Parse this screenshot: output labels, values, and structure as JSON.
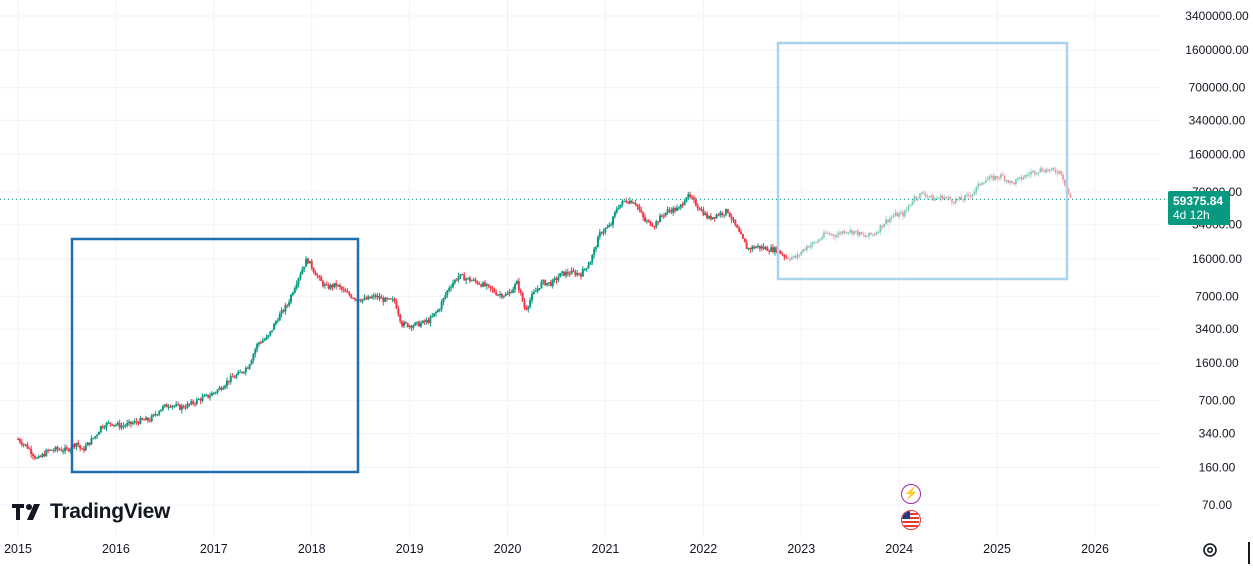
{
  "chart_data": {
    "type": "candlestick",
    "scale": "log",
    "y_ticks": [
      "3400000.00",
      "1600000.00",
      "700000.00",
      "340000.00",
      "160000.00",
      "70000.00",
      "34000.00",
      "16000.00",
      "7000.00",
      "3400.00",
      "1600.00",
      "700.00",
      "340.00",
      "160.00",
      "70.00"
    ],
    "x_ticks": [
      "2015",
      "2016",
      "2017",
      "2018",
      "2019",
      "2020",
      "2021",
      "2022",
      "2023",
      "2024",
      "2025",
      "2026"
    ],
    "x_range": [
      2015.0,
      2026.5
    ],
    "y_range": [
      50,
      4500000
    ],
    "grid": true,
    "current_price": "59375.84",
    "countdown": "4d 12h",
    "series": [
      {
        "color_up": "#089981",
        "color_down": "#f23645",
        "points": [
          [
            2015.0,
            300
          ],
          [
            2015.1,
            250
          ],
          [
            2015.2,
            190
          ],
          [
            2015.3,
            230
          ],
          [
            2015.4,
            240
          ],
          [
            2015.5,
            235
          ],
          [
            2015.6,
            280
          ],
          [
            2015.65,
            230
          ],
          [
            2015.7,
            260
          ],
          [
            2015.8,
            330
          ],
          [
            2015.85,
            400
          ],
          [
            2015.95,
            430
          ],
          [
            2016.05,
            400
          ],
          [
            2016.15,
            420
          ],
          [
            2016.25,
            450
          ],
          [
            2016.35,
            460
          ],
          [
            2016.45,
            580
          ],
          [
            2016.55,
            650
          ],
          [
            2016.65,
            600
          ],
          [
            2016.75,
            640
          ],
          [
            2016.85,
            720
          ],
          [
            2016.95,
            780
          ],
          [
            2017.05,
            900
          ],
          [
            2017.15,
            1100
          ],
          [
            2017.25,
            1250
          ],
          [
            2017.35,
            1500
          ],
          [
            2017.45,
            2500
          ],
          [
            2017.55,
            2800
          ],
          [
            2017.65,
            4300
          ],
          [
            2017.75,
            5800
          ],
          [
            2017.85,
            10000
          ],
          [
            2017.95,
            16000
          ],
          [
            2018.0,
            13500
          ],
          [
            2018.08,
            10000
          ],
          [
            2018.15,
            8500
          ],
          [
            2018.25,
            9000
          ],
          [
            2018.35,
            7500
          ],
          [
            2018.45,
            6700
          ],
          [
            2018.55,
            6500
          ],
          [
            2018.65,
            7000
          ],
          [
            2018.75,
            6400
          ],
          [
            2018.85,
            6300
          ],
          [
            2018.92,
            3800
          ],
          [
            2019.0,
            3700
          ],
          [
            2019.1,
            3800
          ],
          [
            2019.2,
            4100
          ],
          [
            2019.3,
            5300
          ],
          [
            2019.4,
            8500
          ],
          [
            2019.5,
            11000
          ],
          [
            2019.6,
            10200
          ],
          [
            2019.7,
            9500
          ],
          [
            2019.8,
            8500
          ],
          [
            2019.9,
            7400
          ],
          [
            2020.0,
            7200
          ],
          [
            2020.1,
            9500
          ],
          [
            2020.18,
            5200
          ],
          [
            2020.25,
            7000
          ],
          [
            2020.35,
            9500
          ],
          [
            2020.45,
            9300
          ],
          [
            2020.55,
            11500
          ],
          [
            2020.65,
            11800
          ],
          [
            2020.75,
            11500
          ],
          [
            2020.85,
            15500
          ],
          [
            2020.95,
            29000
          ],
          [
            2021.05,
            33000
          ],
          [
            2021.12,
            50000
          ],
          [
            2021.2,
            58000
          ],
          [
            2021.3,
            57000
          ],
          [
            2021.4,
            37000
          ],
          [
            2021.5,
            34000
          ],
          [
            2021.58,
            42000
          ],
          [
            2021.65,
            47000
          ],
          [
            2021.75,
            48000
          ],
          [
            2021.83,
            65000
          ],
          [
            2021.9,
            57000
          ],
          [
            2021.98,
            47000
          ],
          [
            2022.05,
            39000
          ],
          [
            2022.15,
            43000
          ],
          [
            2022.25,
            46000
          ],
          [
            2022.35,
            30000
          ],
          [
            2022.45,
            20000
          ],
          [
            2022.55,
            21000
          ],
          [
            2022.65,
            20000
          ],
          [
            2022.75,
            19500
          ],
          [
            2022.85,
            16500
          ],
          [
            2022.95,
            16500
          ],
          [
            2023.05,
            21000
          ],
          [
            2023.15,
            23000
          ],
          [
            2023.25,
            28000
          ],
          [
            2023.35,
            27000
          ],
          [
            2023.45,
            30000
          ],
          [
            2023.55,
            29000
          ],
          [
            2023.65,
            26000
          ],
          [
            2023.75,
            28000
          ],
          [
            2023.85,
            36000
          ],
          [
            2023.95,
            42000
          ],
          [
            2024.05,
            43000
          ],
          [
            2024.15,
            62000
          ],
          [
            2024.25,
            68000
          ],
          [
            2024.35,
            60000
          ],
          [
            2024.45,
            63000
          ],
          [
            2024.55,
            58000
          ],
          [
            2024.65,
            60000
          ],
          [
            2024.75,
            68000
          ],
          [
            2024.85,
            90000
          ],
          [
            2024.95,
            95000
          ],
          [
            2025.05,
            100000
          ],
          [
            2025.15,
            84000
          ],
          [
            2025.25,
            95000
          ],
          [
            2025.35,
            108000
          ],
          [
            2025.45,
            115000
          ],
          [
            2025.55,
            112000
          ],
          [
            2025.65,
            110000
          ],
          [
            2025.75,
            60000
          ]
        ]
      }
    ]
  },
  "overlay": {
    "countdown": "4d 12h"
  },
  "branding": {
    "logo_text": "TradingView"
  },
  "colors": {
    "up": "#089981",
    "down": "#f23645",
    "box_dark": "#1e6fb0",
    "box_light": "#a9d4ea",
    "price_line": "#089981"
  }
}
